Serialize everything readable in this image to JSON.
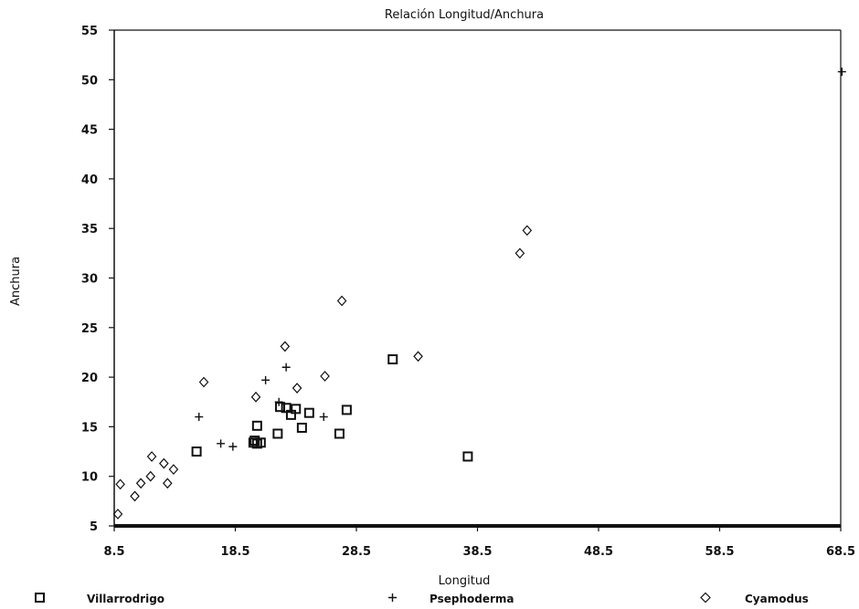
{
  "chart_data": {
    "type": "scatter",
    "title": "Relación Longitud/Anchura",
    "xlabel": "Longitud",
    "ylabel": "Anchura",
    "xlim": [
      8.5,
      68.5
    ],
    "ylim": [
      5,
      55
    ],
    "xticks": [
      "8.5",
      "18.5",
      "28.5",
      "38.5",
      "48.5",
      "58.5",
      "68.5"
    ],
    "yticks": [
      "5",
      "10",
      "15",
      "20",
      "25",
      "30",
      "35",
      "40",
      "45",
      "50",
      "55"
    ],
    "grid": false,
    "legend_position": "bottom",
    "series": [
      {
        "name": "Villarrodrigo",
        "marker": "square",
        "points": [
          [
            15.3,
            12.5
          ],
          [
            20.0,
            13.4
          ],
          [
            20.1,
            13.6
          ],
          [
            20.3,
            13.3
          ],
          [
            20.6,
            13.4
          ],
          [
            20.3,
            15.1
          ],
          [
            22.0,
            14.3
          ],
          [
            22.2,
            17.0
          ],
          [
            22.7,
            16.9
          ],
          [
            23.1,
            16.2
          ],
          [
            23.5,
            16.8
          ],
          [
            24.0,
            14.9
          ],
          [
            24.6,
            16.4
          ],
          [
            27.1,
            14.3
          ],
          [
            27.7,
            16.7
          ],
          [
            31.5,
            21.8
          ],
          [
            37.7,
            12.0
          ]
        ]
      },
      {
        "name": "Psephoderma",
        "marker": "plus",
        "points": [
          [
            15.5,
            16.0
          ],
          [
            17.3,
            13.3
          ],
          [
            18.3,
            13.0
          ],
          [
            21.0,
            19.7
          ],
          [
            22.1,
            17.5
          ],
          [
            22.7,
            21.0
          ],
          [
            25.8,
            16.0
          ],
          [
            68.6,
            50.8
          ]
        ]
      },
      {
        "name": "Cyamodus",
        "marker": "diamond",
        "points": [
          [
            8.8,
            6.2
          ],
          [
            9.0,
            9.2
          ],
          [
            10.2,
            8.0
          ],
          [
            10.7,
            9.3
          ],
          [
            11.5,
            10.0
          ],
          [
            11.6,
            12.0
          ],
          [
            12.6,
            11.3
          ],
          [
            12.9,
            9.3
          ],
          [
            13.4,
            10.7
          ],
          [
            15.9,
            19.5
          ],
          [
            20.2,
            18.0
          ],
          [
            22.6,
            23.1
          ],
          [
            23.6,
            18.9
          ],
          [
            25.9,
            20.1
          ],
          [
            27.3,
            27.7
          ],
          [
            33.6,
            22.1
          ],
          [
            42.0,
            32.5
          ],
          [
            42.6,
            34.8
          ]
        ]
      }
    ]
  }
}
